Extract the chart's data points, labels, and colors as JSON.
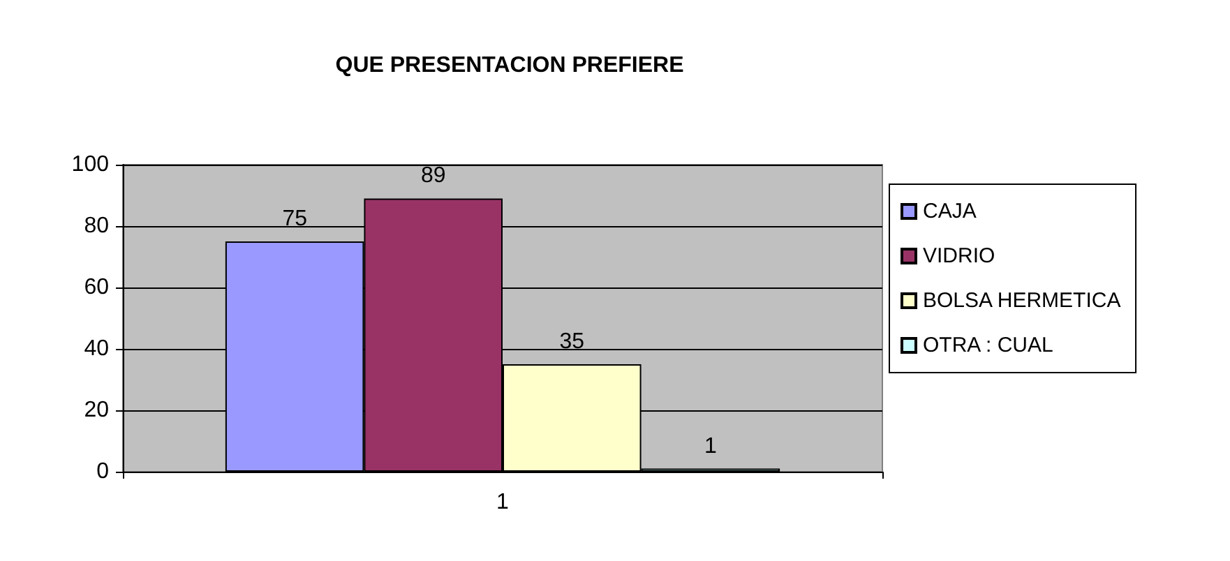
{
  "chart_data": {
    "type": "bar",
    "title": "QUE PRESENTACION PREFIERE",
    "categories": [
      "1"
    ],
    "series": [
      {
        "name": "CAJA",
        "color": "#9999ff",
        "values": [
          75
        ]
      },
      {
        "name": "VIDRIO",
        "color": "#993366",
        "values": [
          89
        ]
      },
      {
        "name": "BOLSA HERMETICA",
        "color": "#ffffcc",
        "values": [
          35
        ]
      },
      {
        "name": "OTRA : CUAL",
        "color": "#ccffff",
        "values": [
          1
        ]
      }
    ],
    "ylim": [
      0,
      100
    ],
    "yticks": [
      0,
      20,
      40,
      60,
      80,
      100
    ],
    "grid": "y",
    "legend": "right",
    "data_labels": true
  }
}
